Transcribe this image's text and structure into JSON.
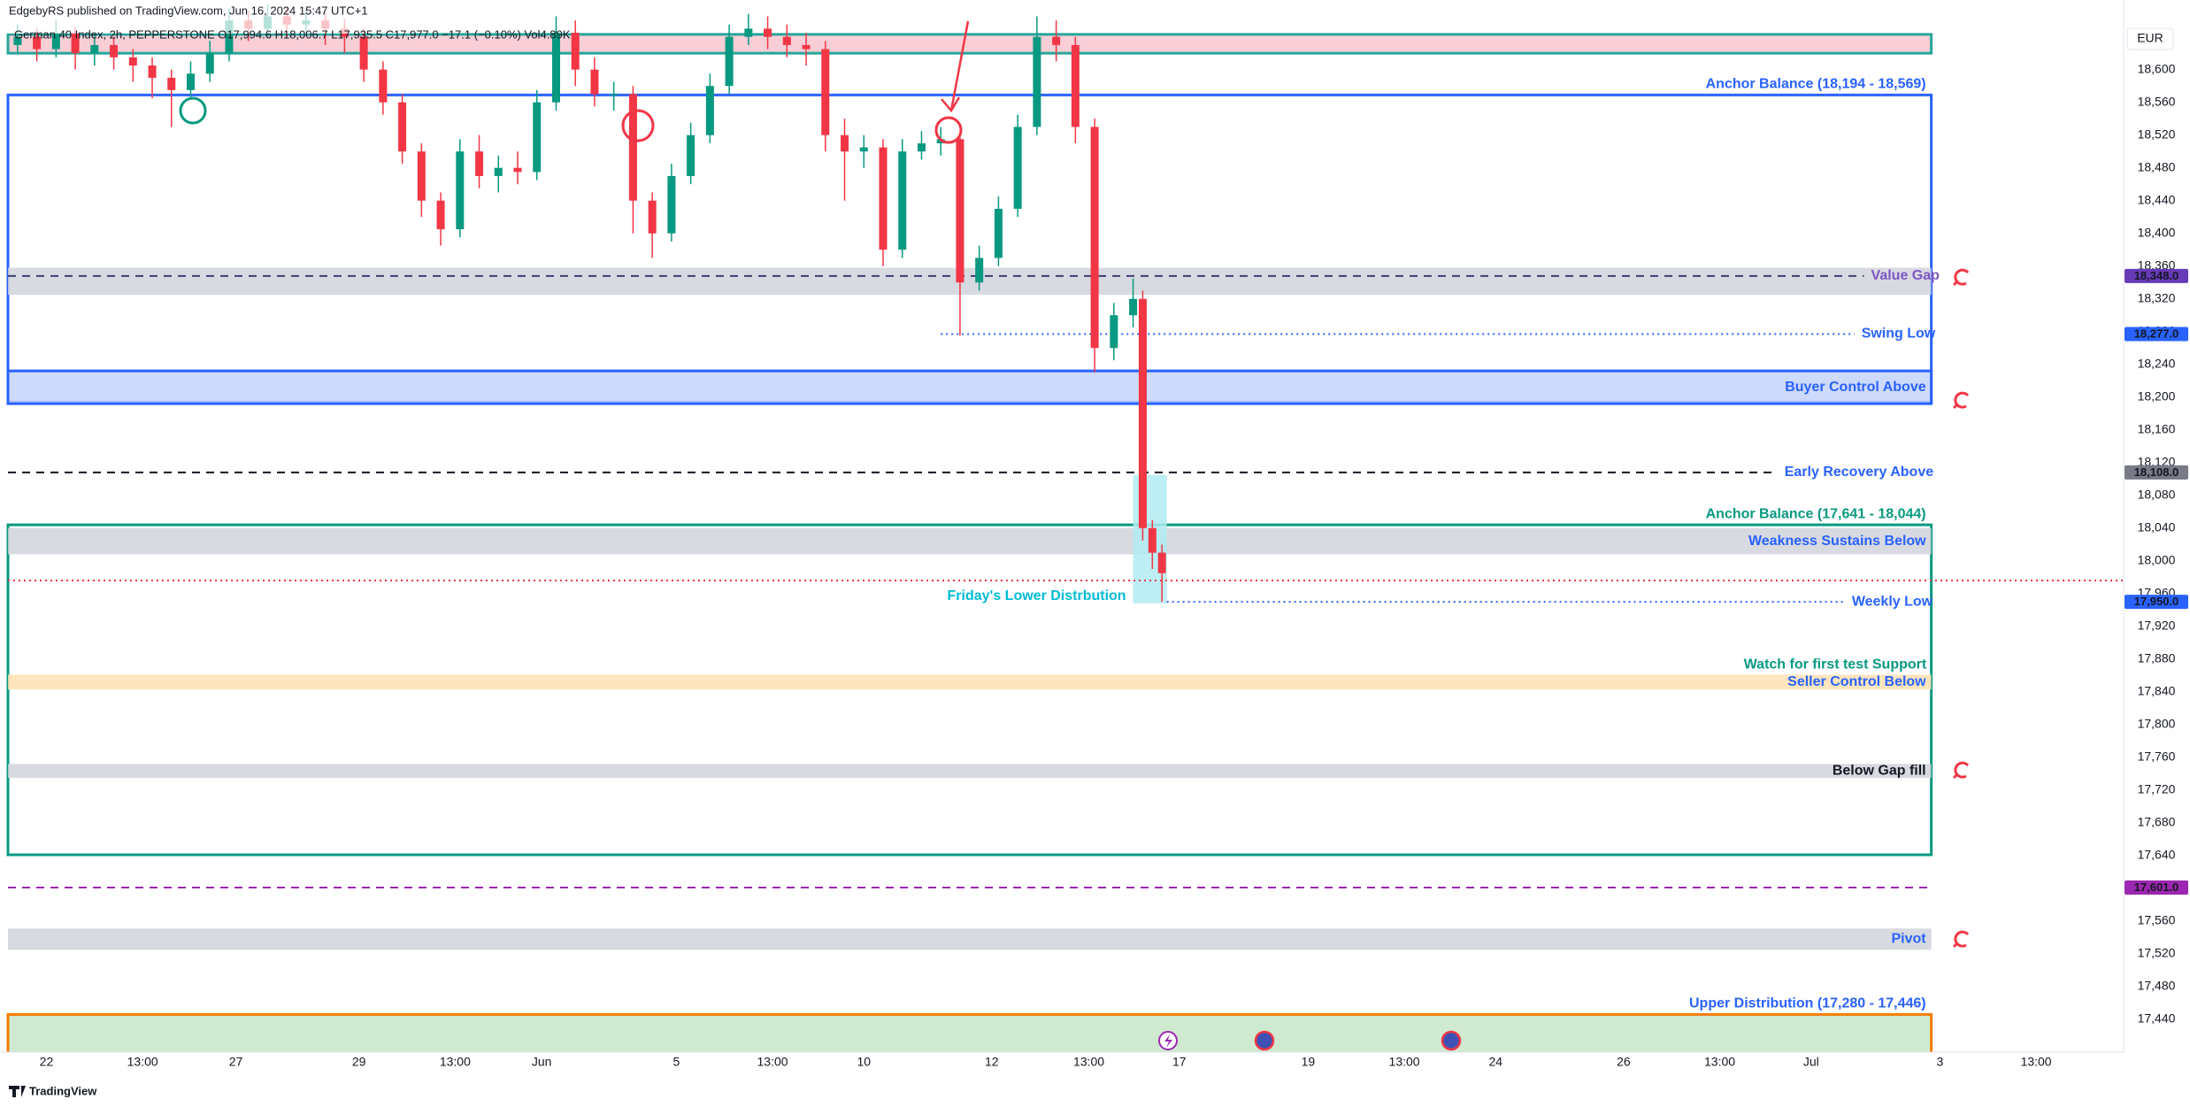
{
  "header": {
    "author": "EdgebyRS published on TradingView.com, Jun 16, 2024 15:47 UTC+1",
    "symbol": "German 40 Index, 2h, PEPPERSTONE  O17,994.6 H18,006.7 L17,935.5 C17,977.0 −17.1 (−0.10%) Vol4.89K",
    "currency": "EUR"
  },
  "footer": {
    "logo": "TradingView"
  },
  "chart_data": {
    "type": "candlestick",
    "up_color": "#089981",
    "down_color": "#f23645",
    "grid": false,
    "xlim": [
      0,
      220
    ],
    "ylim": [
      17400,
      18685
    ],
    "xticks": [
      {
        "value": 4,
        "label": "22"
      },
      {
        "value": 14,
        "label": "13:00"
      },
      {
        "value": 23.7,
        "label": "27"
      },
      {
        "value": 36.5,
        "label": "29"
      },
      {
        "value": 46.5,
        "label": "13:00"
      },
      {
        "value": 55.5,
        "label": "Jun"
      },
      {
        "value": 69.5,
        "label": "5"
      },
      {
        "value": 79.5,
        "label": "13:00"
      },
      {
        "value": 89,
        "label": "10"
      },
      {
        "value": 102.3,
        "label": "12"
      },
      {
        "value": 112.4,
        "label": "13:00"
      },
      {
        "value": 121.8,
        "label": "17"
      },
      {
        "value": 135.2,
        "label": "19"
      },
      {
        "value": 145.2,
        "label": "13:00"
      },
      {
        "value": 154.7,
        "label": "24"
      },
      {
        "value": 168,
        "label": "26"
      },
      {
        "value": 178,
        "label": "13:00"
      },
      {
        "value": 187.5,
        "label": "Jul"
      },
      {
        "value": 200.9,
        "label": "3"
      },
      {
        "value": 210.9,
        "label": "13:00"
      }
    ],
    "yticks": [
      {
        "value": 18600,
        "label": "18,600"
      },
      {
        "value": 18560,
        "label": "18,560"
      },
      {
        "value": 18520,
        "label": "18,520"
      },
      {
        "value": 18480,
        "label": "18,480"
      },
      {
        "value": 18440,
        "label": "18,440"
      },
      {
        "value": 18400,
        "label": "18,400"
      },
      {
        "value": 18360,
        "label": "18,360"
      },
      {
        "value": 18320,
        "label": "18,320"
      },
      {
        "value": 18280,
        "label": "18,280"
      },
      {
        "value": 18240,
        "label": "18,240"
      },
      {
        "value": 18200,
        "label": "18,200"
      },
      {
        "value": 18160,
        "label": "18,160"
      },
      {
        "value": 18120,
        "label": "18,120"
      },
      {
        "value": 18080,
        "label": "18,080"
      },
      {
        "value": 18040,
        "label": "18,040"
      },
      {
        "value": 18000,
        "label": "18,000"
      },
      {
        "value": 17960,
        "label": "17,960"
      },
      {
        "value": 17920,
        "label": "17,920"
      },
      {
        "value": 17880,
        "label": "17,880"
      },
      {
        "value": 17840,
        "label": "17,840"
      },
      {
        "value": 17800,
        "label": "17,800"
      },
      {
        "value": 17760,
        "label": "17,760"
      },
      {
        "value": 17720,
        "label": "17,720"
      },
      {
        "value": 17680,
        "label": "17,680"
      },
      {
        "value": 17640,
        "label": "17,640"
      },
      {
        "value": 17600,
        "label": "17,600"
      },
      {
        "value": 17560,
        "label": "17,560"
      },
      {
        "value": 17520,
        "label": "17,520"
      },
      {
        "value": 17480,
        "label": "17,480"
      },
      {
        "value": 17440,
        "label": "17,440"
      }
    ],
    "x": [
      1,
      3,
      5,
      7,
      9,
      11,
      13,
      15,
      17,
      19,
      21,
      23,
      25,
      27,
      29,
      31,
      33,
      35,
      37,
      39,
      41,
      43,
      45,
      47,
      49,
      51,
      53,
      55,
      57,
      59,
      61,
      63,
      65,
      67,
      69,
      71,
      73,
      75,
      77,
      79,
      81,
      83,
      85,
      87,
      89,
      91,
      93,
      95,
      97,
      99,
      101,
      103,
      105,
      107,
      109,
      111,
      113,
      115,
      117,
      118,
      119,
      120
    ],
    "open": [
      18630,
      18640,
      18625,
      18645,
      18620,
      18630,
      18615,
      18605,
      18590,
      18575,
      18595,
      18620,
      18660,
      18650,
      18665,
      18655,
      18660,
      18650,
      18640,
      18600,
      18560,
      18500,
      18440,
      18405,
      18500,
      18470,
      18480,
      18475,
      18560,
      18645,
      18600,
      18570,
      18570,
      18440,
      18400,
      18470,
      18520,
      18580,
      18640,
      18650,
      18640,
      18630,
      18625,
      18520,
      18500,
      18505,
      18380,
      18500,
      18510,
      18515,
      18340,
      18370,
      18430,
      18530,
      18640,
      18630,
      18530,
      18260,
      18300,
      18320,
      18040,
      18010
    ],
    "high": [
      18655,
      18650,
      18660,
      18652,
      18645,
      18640,
      18625,
      18615,
      18600,
      18610,
      18635,
      18675,
      18672,
      18680,
      18675,
      18672,
      18670,
      18662,
      18650,
      18610,
      18570,
      18510,
      18450,
      18515,
      18520,
      18495,
      18500,
      18575,
      18665,
      18660,
      18615,
      18585,
      18580,
      18450,
      18485,
      18535,
      18595,
      18655,
      18668,
      18665,
      18655,
      18645,
      18635,
      18540,
      18520,
      18515,
      18515,
      18525,
      18530,
      18520,
      18385,
      18445,
      18545,
      18665,
      18660,
      18640,
      18540,
      18315,
      18345,
      18330,
      18050,
      18020
    ],
    "low": [
      18620,
      18610,
      18615,
      18600,
      18605,
      18600,
      18585,
      18565,
      18530,
      18565,
      18585,
      18610,
      18635,
      18640,
      18640,
      18645,
      18630,
      18620,
      18585,
      18545,
      18485,
      18420,
      18385,
      18395,
      18455,
      18450,
      18460,
      18465,
      18550,
      18580,
      18555,
      18550,
      18400,
      18370,
      18390,
      18460,
      18510,
      18570,
      18630,
      18625,
      18615,
      18605,
      18500,
      18440,
      18480,
      18360,
      18370,
      18490,
      18495,
      18275,
      18330,
      18360,
      18420,
      18520,
      18610,
      18510,
      18230,
      18245,
      18285,
      18025,
      17990,
      17950
    ],
    "close": [
      18640,
      18625,
      18645,
      18620,
      18630,
      18615,
      18605,
      18590,
      18575,
      18595,
      18620,
      18660,
      18650,
      18665,
      18655,
      18660,
      18650,
      18640,
      18600,
      18560,
      18500,
      18440,
      18405,
      18500,
      18470,
      18480,
      18475,
      18560,
      18645,
      18600,
      18570,
      18570,
      18440,
      18400,
      18470,
      18520,
      18580,
      18640,
      18650,
      18640,
      18630,
      18625,
      18520,
      18500,
      18505,
      18380,
      18500,
      18510,
      18515,
      18340,
      18370,
      18430,
      18530,
      18640,
      18630,
      18530,
      18260,
      18300,
      18320,
      18040,
      18010,
      17985
    ],
    "zones": [
      {
        "low": 18620,
        "high": 18643,
        "from": 0,
        "to": 200,
        "fill": "#f8c6cf",
        "stroke": "#26a69a"
      },
      {
        "label": "Anchor Balance (18,194 - 18,569)",
        "low": 18194,
        "high": 18569,
        "from": 0,
        "to": 200,
        "stroke": "#2962ff",
        "color": "#2962ff"
      },
      {
        "low": 18325,
        "high": 18358,
        "from": 0,
        "to": 200,
        "fill": "#d1d4dc"
      },
      {
        "label": "Buyer Control Above",
        "low": 18192,
        "high": 18232,
        "from": 0,
        "to": 200,
        "fill": "#c5d3fb",
        "stroke": "#2962ff",
        "color": "#2962ff"
      },
      {
        "label": "Anchor Balance (17,641 - 18,044)",
        "low": 17641,
        "high": 18044,
        "from": 0,
        "to": 200,
        "stroke": "#089981",
        "color": "#089981"
      },
      {
        "label": "Weakness Sustains Below",
        "low": 18008,
        "high": 18040,
        "from": 0,
        "to": 200,
        "fill": "#d1d4dc",
        "color": "#2962ff"
      },
      {
        "label": "Seller Control Below",
        "low": 17843,
        "high": 17861,
        "from": 0,
        "to": 200,
        "fill": "#ffe0b2",
        "color": "#2962ff"
      },
      {
        "label": "Below Gap fill",
        "low": 17735,
        "high": 17752,
        "from": 0,
        "to": 200,
        "fill": "#d1d4dc",
        "color": "#131722"
      },
      {
        "label": "Pivot",
        "low": 17525,
        "high": 17551,
        "from": 0,
        "to": 200,
        "fill": "#d1d4dc",
        "color": "#2962ff"
      },
      {
        "label": "Upper Distribution (17,280 - 17,446)",
        "low": 17280,
        "high": 17446,
        "from": 0,
        "to": 200,
        "fill": "#c8e6c9",
        "stroke": "#f57c00",
        "color": "#2962ff",
        "label_position": "above"
      },
      {
        "label": "Friday's Lower Distrbution",
        "low": 17948,
        "high": 18105,
        "from": 117,
        "to": 120.5,
        "fill": "#b2ebf2",
        "color": "#00bcd4",
        "label_position": "left"
      }
    ],
    "lines": [
      {
        "label": "Value Gap",
        "value": 18348,
        "from": 0,
        "to": 193,
        "style": "dashed",
        "color": "#3c3f73",
        "text_color": "#7e57c2",
        "badge": "18,348.0",
        "badge_color": "#673ab7"
      },
      {
        "label": "Swing Low",
        "value": 18277,
        "from": 97,
        "to": 192,
        "style": "dotted",
        "color": "#2962ff",
        "text_color": "#2962ff",
        "badge": "18,277.0",
        "badge_color": "#2962ff"
      },
      {
        "label": "Early Recovery Above",
        "value": 18108,
        "from": 0,
        "to": 184,
        "style": "dashed",
        "color": "#131722",
        "text_color": "#2962ff",
        "badge": "18,108.0",
        "badge_color": "#787b86"
      },
      {
        "label": "Weekly Low",
        "value": 17950,
        "from": 120.5,
        "to": 191,
        "style": "dotted",
        "color": "#2962ff",
        "text_color": "#2962ff",
        "badge": "17,950.0",
        "badge_color": "#2962ff"
      },
      {
        "value": 17976,
        "from": 0,
        "to": 220,
        "style": "dotted",
        "color": "#f23645"
      },
      {
        "value": 17601,
        "from": 0,
        "to": 200,
        "style": "dashed",
        "color": "#9c27b0",
        "badge": "17,601.0",
        "badge_color": "#9c27b0"
      }
    ],
    "annotations": [
      {
        "text": "Watch for first test Support",
        "x": 199.5,
        "y": 17873,
        "color": "#089981"
      }
    ]
  }
}
